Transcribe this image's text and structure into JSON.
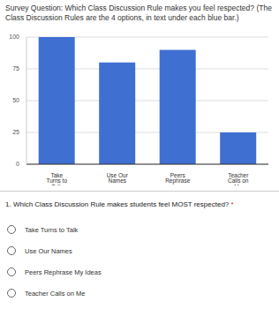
{
  "chart_data": {
    "type": "bar",
    "title": "Survey Question: Which Class Discussion Rule makes you feel respected? (The Class Discussion Rules are the 4 options, in text under each blue bar.)",
    "categories": [
      "Take Turns to Talk",
      "Use Our Names",
      "Peers Rephrase my Ideas",
      "Teacher Calls on Me"
    ],
    "values": [
      100,
      80,
      90,
      25
    ],
    "color": "#3f6fd1",
    "ylim": [
      0,
      100
    ],
    "yticks": [
      0,
      25,
      50,
      75,
      100
    ],
    "grid": true
  },
  "form": {
    "question": "1. Which Class Discussion Rule makes students feel MOST respected?",
    "required_mark": "*",
    "options": [
      "Take Turns to Talk",
      "Use Our Names",
      "Peers Rephrase My Ideas",
      "Teacher Calls on Me"
    ]
  }
}
